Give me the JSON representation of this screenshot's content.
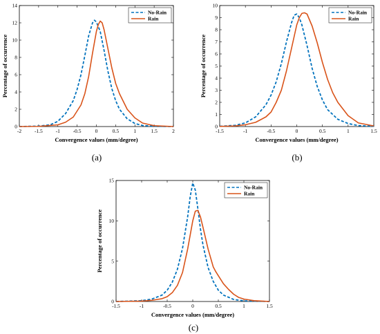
{
  "chart_data": [
    {
      "id": "a",
      "type": "line",
      "caption": "(a)",
      "xlabel": "Convergence values (mm/degree)",
      "ylabel": "Percentage of occurrence",
      "xlim": [
        -2,
        2
      ],
      "ylim": [
        0,
        14
      ],
      "xticks": [
        -2,
        -1.5,
        -1,
        -0.5,
        0,
        0.5,
        1,
        1.5,
        2
      ],
      "yticks": [
        0,
        2,
        4,
        6,
        8,
        10,
        12,
        14
      ],
      "legend": "top-right",
      "grid": false,
      "series": [
        {
          "name": "No-Rain",
          "style": "dashed",
          "color": "#0072BD",
          "x": [
            -2,
            -1.5,
            -1.2,
            -1.0,
            -0.8,
            -0.6,
            -0.5,
            -0.4,
            -0.3,
            -0.2,
            -0.1,
            -0.05,
            0.0,
            0.1,
            0.2,
            0.3,
            0.4,
            0.5,
            0.6,
            0.8,
            1.0,
            1.2,
            1.5,
            2
          ],
          "y": [
            0,
            0.05,
            0.2,
            0.6,
            1.5,
            3.0,
            4.3,
            6.0,
            8.2,
            10.5,
            12.0,
            12.3,
            12.1,
            11.0,
            8.8,
            6.4,
            4.4,
            3.0,
            2.0,
            0.9,
            0.35,
            0.12,
            0.03,
            0
          ]
        },
        {
          "name": "Rain",
          "style": "solid",
          "color": "#D95319",
          "x": [
            -2,
            -1.5,
            -1.0,
            -0.8,
            -0.6,
            -0.4,
            -0.3,
            -0.2,
            -0.1,
            0.0,
            0.05,
            0.1,
            0.15,
            0.2,
            0.3,
            0.4,
            0.5,
            0.6,
            0.8,
            1.0,
            1.2,
            1.5,
            2
          ],
          "y": [
            0,
            0.02,
            0.2,
            0.5,
            1.1,
            2.5,
            3.8,
            5.8,
            8.5,
            11.0,
            11.8,
            12.2,
            12.0,
            11.2,
            9.0,
            6.8,
            5.0,
            3.8,
            2.0,
            1.0,
            0.4,
            0.1,
            0
          ]
        }
      ]
    },
    {
      "id": "b",
      "type": "line",
      "caption": "(b)",
      "xlabel": "Convergence values (mm/degree)",
      "ylabel": "Percentage of occurrence",
      "xlim": [
        -1.5,
        1.5
      ],
      "ylim": [
        0,
        10
      ],
      "xticks": [
        -1.5,
        -1,
        -0.5,
        0,
        0.5,
        1,
        1.5
      ],
      "yticks": [
        0,
        1,
        2,
        3,
        4,
        5,
        6,
        7,
        8,
        9,
        10
      ],
      "legend": "top-right",
      "grid": false,
      "series": [
        {
          "name": "No-Rain",
          "style": "dashed",
          "color": "#0072BD",
          "x": [
            -1.5,
            -1.2,
            -1.0,
            -0.8,
            -0.6,
            -0.5,
            -0.4,
            -0.3,
            -0.2,
            -0.1,
            -0.05,
            0.0,
            0.05,
            0.1,
            0.2,
            0.3,
            0.4,
            0.5,
            0.6,
            0.8,
            1.0,
            1.2,
            1.5
          ],
          "y": [
            0.02,
            0.1,
            0.3,
            0.8,
            1.8,
            2.6,
            3.7,
            5.2,
            7.0,
            8.6,
            9.2,
            9.3,
            9.0,
            8.4,
            6.7,
            4.8,
            3.3,
            2.2,
            1.4,
            0.6,
            0.25,
            0.08,
            0.02
          ]
        },
        {
          "name": "Rain",
          "style": "solid",
          "color": "#D95319",
          "x": [
            -1.5,
            -1.2,
            -1.0,
            -0.8,
            -0.6,
            -0.5,
            -0.4,
            -0.3,
            -0.2,
            -0.1,
            0.0,
            0.05,
            0.1,
            0.15,
            0.2,
            0.3,
            0.4,
            0.5,
            0.6,
            0.7,
            0.8,
            1.0,
            1.2,
            1.5
          ],
          "y": [
            0.01,
            0.05,
            0.15,
            0.35,
            0.8,
            1.2,
            2.0,
            3.0,
            4.6,
            6.5,
            8.4,
            9.0,
            9.35,
            9.4,
            9.3,
            8.3,
            6.9,
            5.3,
            3.9,
            2.8,
            2.0,
            0.9,
            0.3,
            0.05
          ]
        }
      ]
    },
    {
      "id": "c",
      "type": "line",
      "caption": "(c)",
      "xlabel": "Convergence values (mm/degree)",
      "ylabel": "Percentage of occurrence",
      "xlim": [
        -1.5,
        1.5
      ],
      "ylim": [
        0,
        15
      ],
      "xticks": [
        -1.5,
        -1,
        -0.5,
        0,
        0.5,
        1,
        1.5
      ],
      "yticks": [
        0,
        5,
        10,
        15
      ],
      "legend": "top-right",
      "grid": false,
      "series": [
        {
          "name": "No-Rain",
          "style": "dashed",
          "color": "#0072BD",
          "x": [
            -1.5,
            -1.0,
            -0.8,
            -0.6,
            -0.5,
            -0.4,
            -0.3,
            -0.2,
            -0.1,
            -0.05,
            0.0,
            0.05,
            0.1,
            0.15,
            0.2,
            0.3,
            0.4,
            0.5,
            0.6,
            0.8,
            1.0,
            1.5
          ],
          "y": [
            0,
            0.1,
            0.3,
            0.8,
            1.4,
            2.4,
            4.0,
            6.6,
            10.5,
            13.0,
            14.7,
            13.8,
            11.5,
            9.0,
            7.0,
            4.2,
            2.5,
            1.4,
            0.8,
            0.25,
            0.08,
            0
          ]
        },
        {
          "name": "Rain",
          "style": "solid",
          "color": "#D95319",
          "x": [
            -1.5,
            -1.0,
            -0.8,
            -0.6,
            -0.5,
            -0.4,
            -0.3,
            -0.2,
            -0.1,
            0.0,
            0.05,
            0.1,
            0.15,
            0.2,
            0.3,
            0.4,
            0.45,
            0.5,
            0.6,
            0.7,
            0.8,
            0.9,
            1.0,
            1.2,
            1.5
          ],
          "y": [
            0,
            0.05,
            0.15,
            0.35,
            0.6,
            1.1,
            2.0,
            3.6,
            6.5,
            10.0,
            11.2,
            11.3,
            10.5,
            9.2,
            6.5,
            4.3,
            3.7,
            3.2,
            2.2,
            1.5,
            0.9,
            0.5,
            0.3,
            0.1,
            0
          ]
        }
      ]
    }
  ]
}
